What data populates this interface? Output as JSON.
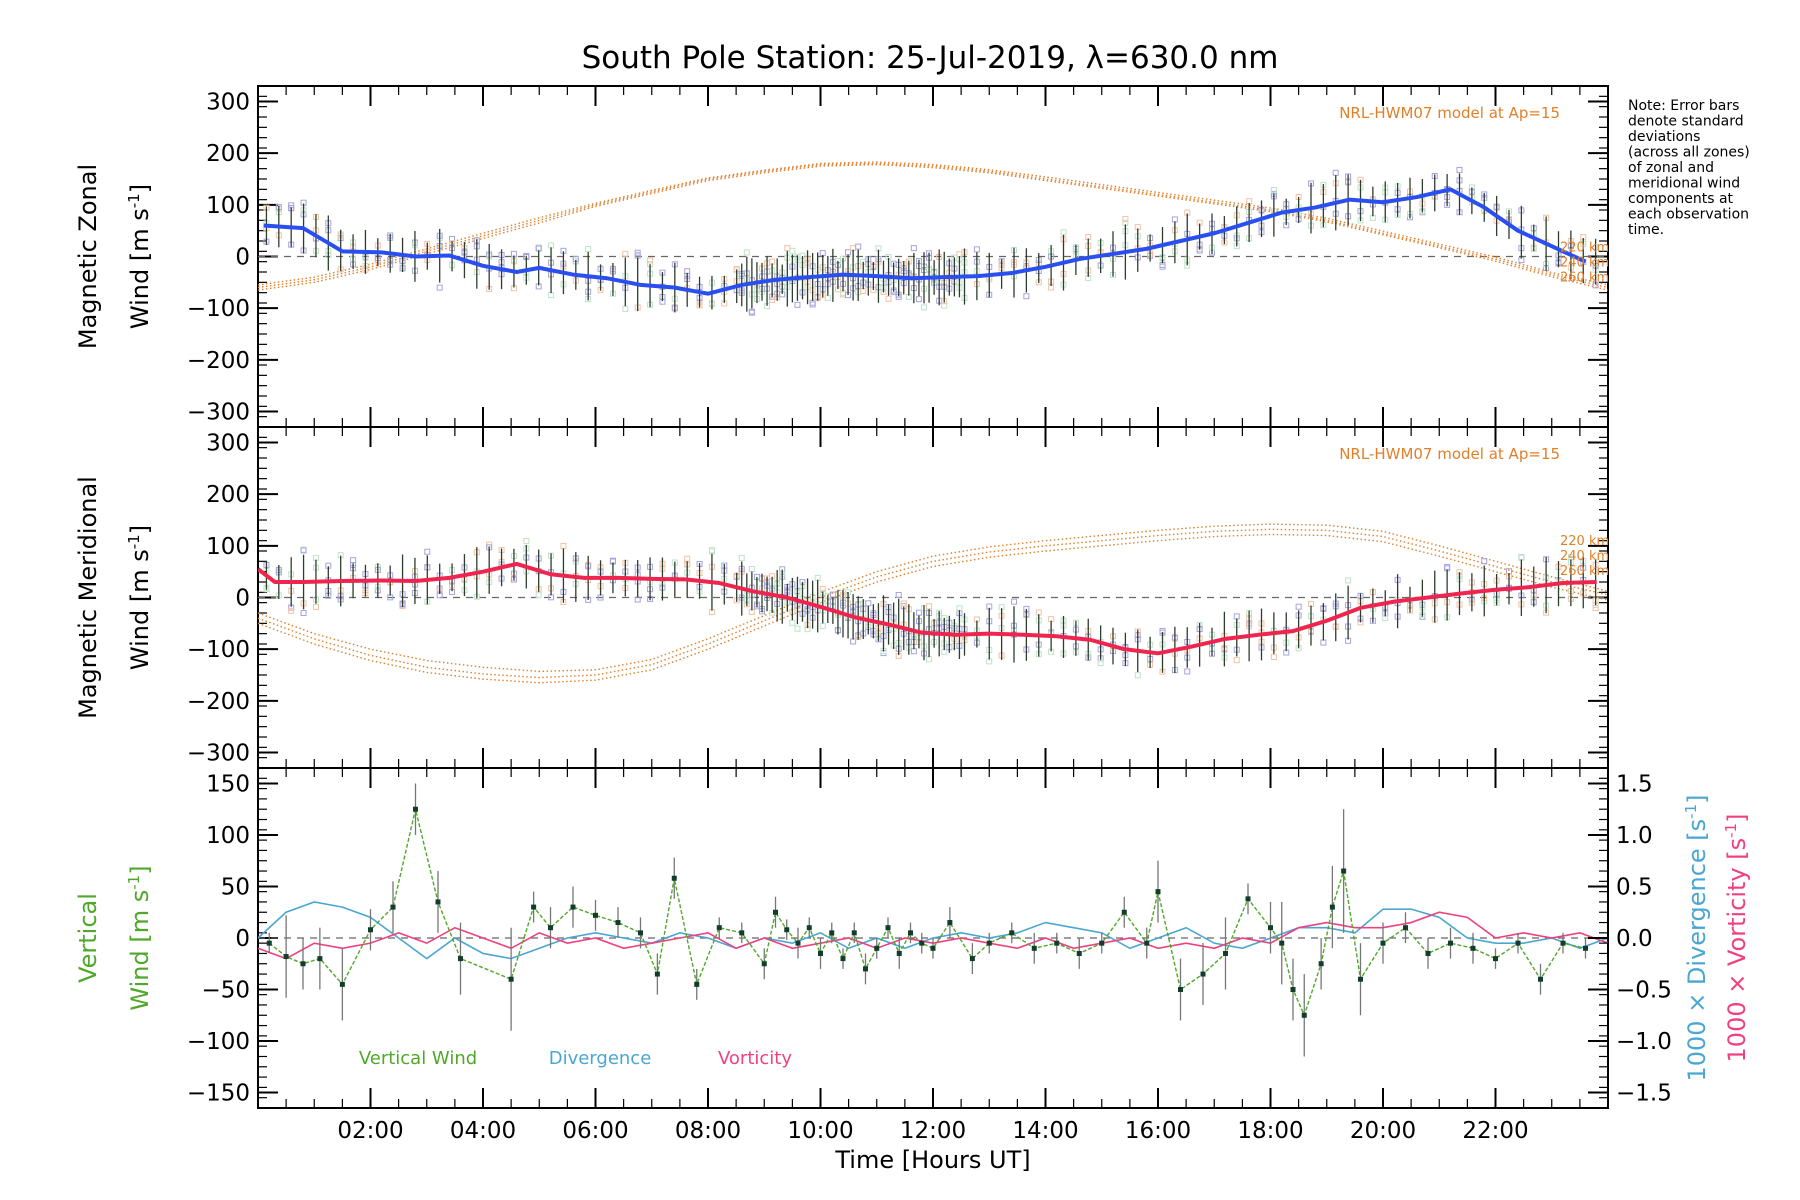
{
  "title": "South Pole Station: 25-Jul-2019, λ=630.0 nm",
  "note": [
    "Note: Error bars",
    "denote standard",
    "deviations",
    "(across all zones)",
    "of zonal and",
    "meridional wind",
    "components at",
    "each observation",
    "time."
  ],
  "colors": {
    "zonal": "#2a4ff0",
    "meridional": "#f0254f",
    "vertical": "#4fa82a",
    "divergence": "#4aa6d2",
    "vorticity": "#f0407f",
    "model": "#e0802a",
    "scatter": "#a7a3dd",
    "errorbar": "#2c3e2c"
  },
  "chart_data": [
    {
      "id": "zonal",
      "type": "line",
      "ylabel_line1": "Magnetic Zonal",
      "ylabel_line2": "Wind [m s",
      "ylabel_sup": "-1",
      "ylabel_close": "]",
      "ylim": [
        -330,
        330
      ],
      "yticks": [
        300,
        200,
        100,
        0,
        -100,
        -200,
        -300
      ],
      "yticklabels": [
        "300",
        "200",
        "100",
        "0",
        "−100",
        "−200",
        "−300"
      ],
      "model_label": "NRL-HWM07 model at Ap=15",
      "model_heights": [
        "220 km",
        "240 km",
        "260 km"
      ],
      "series": [
        {
          "name": "Zonal wind",
          "x": [
            0.1,
            0.8,
            1.5,
            2.2,
            2.8,
            3.4,
            4.0,
            4.6,
            5.0,
            5.6,
            6.2,
            6.8,
            7.4,
            8.0,
            8.6,
            9.2,
            9.8,
            10.4,
            11.0,
            11.6,
            12.2,
            12.8,
            13.4,
            14.0,
            14.6,
            15.2,
            15.8,
            16.4,
            17.0,
            17.6,
            18.2,
            18.8,
            19.4,
            20.0,
            20.6,
            21.2,
            21.8,
            22.4,
            23.0,
            23.6
          ],
          "y": [
            60,
            55,
            10,
            8,
            0,
            2,
            -18,
            -30,
            -22,
            -35,
            -42,
            -55,
            -60,
            -72,
            -55,
            -45,
            -40,
            -35,
            -38,
            -42,
            -40,
            -38,
            -32,
            -20,
            -5,
            5,
            15,
            30,
            45,
            65,
            85,
            95,
            110,
            105,
            115,
            130,
            95,
            50,
            20,
            -10
          ]
        }
      ],
      "model_curves": [
        {
          "name": "220 km",
          "x": [
            0,
            1,
            2,
            3,
            4,
            5,
            6,
            7,
            8,
            9,
            10,
            11,
            12,
            13,
            14,
            15,
            16,
            17,
            18,
            19,
            20,
            21,
            22,
            23,
            24
          ],
          "y": [
            -60,
            -45,
            -20,
            10,
            40,
            70,
            100,
            125,
            150,
            165,
            178,
            180,
            175,
            165,
            150,
            135,
            120,
            105,
            90,
            70,
            45,
            20,
            -5,
            -35,
            -60
          ]
        },
        {
          "name": "240 km",
          "x": [
            0,
            1,
            2,
            3,
            4,
            5,
            6,
            7,
            8,
            9,
            10,
            11,
            12,
            13,
            14,
            15,
            16,
            17,
            18,
            19,
            20,
            21,
            22,
            23,
            24
          ],
          "y": [
            -55,
            -40,
            -15,
            15,
            45,
            75,
            103,
            128,
            152,
            167,
            180,
            183,
            178,
            168,
            154,
            139,
            124,
            109,
            94,
            74,
            49,
            24,
            -1,
            -31,
            -55
          ]
        },
        {
          "name": "260 km",
          "x": [
            0,
            1,
            2,
            3,
            4,
            5,
            6,
            7,
            8,
            9,
            10,
            11,
            12,
            13,
            14,
            15,
            16,
            17,
            18,
            19,
            20,
            21,
            22,
            23,
            24
          ],
          "y": [
            -65,
            -50,
            -25,
            5,
            35,
            65,
            97,
            122,
            147,
            162,
            175,
            178,
            172,
            162,
            147,
            132,
            117,
            102,
            87,
            67,
            42,
            17,
            -9,
            -39,
            -65
          ]
        }
      ]
    },
    {
      "id": "meridional",
      "type": "line",
      "ylabel_line1": "Magnetic Meridional",
      "ylabel_line2": "Wind [m s",
      "ylabel_sup": "-1",
      "ylabel_close": "]",
      "ylim": [
        -330,
        330
      ],
      "yticks": [
        300,
        200,
        100,
        0,
        -100,
        -200,
        -300
      ],
      "yticklabels": [
        "300",
        "200",
        "100",
        "0",
        "−100",
        "−200",
        "−300"
      ],
      "model_label": "NRL-HWM07 model at Ap=15",
      "model_heights": [
        "220 km",
        "240 km",
        "260 km"
      ],
      "series": [
        {
          "name": "Meridional wind",
          "x": [
            0.0,
            0.3,
            0.8,
            1.5,
            2.2,
            2.8,
            3.4,
            4.0,
            4.6,
            5.2,
            5.8,
            6.4,
            7.0,
            7.6,
            8.2,
            8.8,
            9.4,
            10.0,
            10.6,
            11.2,
            11.8,
            12.4,
            13.0,
            13.6,
            14.2,
            14.8,
            15.4,
            16.0,
            16.6,
            17.2,
            17.8,
            18.4,
            19.0,
            19.6,
            20.2,
            20.8,
            21.4,
            22.0,
            22.6,
            23.2,
            23.8
          ],
          "y": [
            55,
            30,
            30,
            32,
            33,
            32,
            38,
            50,
            65,
            45,
            38,
            38,
            36,
            35,
            28,
            12,
            0,
            -18,
            -38,
            -52,
            -68,
            -72,
            -70,
            -72,
            -75,
            -82,
            -100,
            -108,
            -95,
            -80,
            -72,
            -65,
            -45,
            -20,
            -8,
            0,
            8,
            15,
            20,
            28,
            30
          ]
        }
      ],
      "model_curves": [
        {
          "name": "220 km",
          "x": [
            0,
            1,
            2,
            3,
            4,
            5,
            6,
            7,
            8,
            9,
            10,
            11,
            12,
            13,
            14,
            15,
            16,
            17,
            18,
            19,
            20,
            21,
            22,
            23,
            24
          ],
          "y": [
            -40,
            -80,
            -112,
            -135,
            -148,
            -155,
            -150,
            -130,
            -90,
            -45,
            0,
            40,
            70,
            88,
            100,
            110,
            120,
            128,
            132,
            130,
            118,
            90,
            60,
            30,
            5
          ]
        },
        {
          "name": "240 km",
          "x": [
            0,
            1,
            2,
            3,
            4,
            5,
            6,
            7,
            8,
            9,
            10,
            11,
            12,
            13,
            14,
            15,
            16,
            17,
            18,
            19,
            20,
            21,
            22,
            23,
            24
          ],
          "y": [
            -30,
            -70,
            -100,
            -122,
            -135,
            -143,
            -140,
            -120,
            -80,
            -35,
            10,
            50,
            80,
            98,
            110,
            120,
            130,
            138,
            142,
            140,
            128,
            100,
            70,
            40,
            12
          ]
        },
        {
          "name": "260 km",
          "x": [
            0,
            1,
            2,
            3,
            4,
            5,
            6,
            7,
            8,
            9,
            10,
            11,
            12,
            13,
            14,
            15,
            16,
            17,
            18,
            19,
            20,
            21,
            22,
            23,
            24
          ],
          "y": [
            -50,
            -90,
            -122,
            -145,
            -158,
            -165,
            -160,
            -140,
            -100,
            -55,
            -10,
            30,
            60,
            78,
            90,
            100,
            110,
            118,
            122,
            120,
            108,
            80,
            50,
            20,
            -5
          ]
        }
      ]
    },
    {
      "id": "vertical",
      "type": "line",
      "ylabel_line1": "Vertical",
      "ylabel_line2": "Wind [m s",
      "ylabel_sup": "-1",
      "ylabel_close": "]",
      "ylim": [
        -165,
        165
      ],
      "yticks": [
        150,
        100,
        50,
        0,
        -50,
        -100,
        -150
      ],
      "yticklabels": [
        "150",
        "100",
        "50",
        "0",
        "−50",
        "−100",
        "−150"
      ],
      "y2lim": [
        -1.65,
        1.65
      ],
      "y2ticks": [
        1.5,
        1.0,
        0.5,
        0.0,
        -0.5,
        -1.0,
        -1.5
      ],
      "y2ticklabels": [
        "1.5",
        "1.0",
        "0.5",
        "0.0",
        "−0.5",
        "−1.0",
        "−1.5"
      ],
      "y2label_div": "1000 × Divergence [s",
      "y2label_vor": "1000 × Vorticity [s",
      "legend": [
        "Vertical Wind",
        "Divergence",
        "Vorticity"
      ],
      "series": [
        {
          "name": "Vertical Wind",
          "x": [
            0.2,
            0.5,
            0.8,
            1.1,
            1.5,
            2.0,
            2.4,
            2.8,
            3.2,
            3.6,
            4.5,
            4.9,
            5.2,
            5.6,
            6.0,
            6.4,
            6.8,
            7.1,
            7.4,
            7.8,
            8.2,
            8.6,
            9.0,
            9.2,
            9.4,
            9.6,
            9.8,
            10.0,
            10.2,
            10.4,
            10.6,
            10.8,
            11.0,
            11.2,
            11.4,
            11.6,
            11.8,
            12.0,
            12.3,
            12.7,
            13.0,
            13.4,
            13.8,
            14.2,
            14.6,
            15.0,
            15.4,
            15.8,
            16.0,
            16.4,
            16.8,
            17.2,
            17.6,
            18.0,
            18.2,
            18.4,
            18.6,
            18.9,
            19.1,
            19.3,
            19.6,
            20.0,
            20.4,
            20.8,
            21.2,
            21.6,
            22.0,
            22.4,
            22.8,
            23.2,
            23.6
          ],
          "y": [
            -5,
            -18,
            -25,
            -20,
            -45,
            8,
            30,
            125,
            35,
            -20,
            -40,
            30,
            10,
            30,
            22,
            15,
            5,
            -35,
            58,
            -45,
            10,
            5,
            -25,
            25,
            8,
            -5,
            10,
            -15,
            5,
            -20,
            5,
            -30,
            -10,
            10,
            -15,
            5,
            -5,
            -10,
            15,
            -20,
            -5,
            5,
            -10,
            -5,
            -15,
            -5,
            25,
            -5,
            45,
            -50,
            -35,
            -15,
            38,
            10,
            -5,
            -50,
            -75,
            -25,
            30,
            65,
            -40,
            -5,
            10,
            -15,
            -5,
            -10,
            -20,
            -5,
            -40,
            -5,
            -10
          ],
          "err": [
            10,
            40,
            25,
            30,
            35,
            20,
            25,
            25,
            30,
            35,
            50,
            15,
            20,
            20,
            15,
            15,
            15,
            20,
            20,
            15,
            10,
            10,
            15,
            15,
            10,
            15,
            10,
            15,
            10,
            10,
            10,
            15,
            10,
            10,
            15,
            10,
            10,
            10,
            15,
            15,
            10,
            10,
            15,
            10,
            15,
            10,
            15,
            15,
            30,
            30,
            30,
            35,
            15,
            25,
            40,
            30,
            40,
            25,
            40,
            60,
            35,
            20,
            15,
            15,
            15,
            15,
            10,
            10,
            15,
            10,
            10
          ]
        },
        {
          "name": "Divergence",
          "x": [
            0,
            0.5,
            1.0,
            1.5,
            2.0,
            2.5,
            3.0,
            3.5,
            4.0,
            4.5,
            5.0,
            5.5,
            6.0,
            6.5,
            7.0,
            7.5,
            8.0,
            8.5,
            9.0,
            9.5,
            10.0,
            10.5,
            11.0,
            11.5,
            12.0,
            12.5,
            13.0,
            13.5,
            14.0,
            14.5,
            15.0,
            15.5,
            16.0,
            16.5,
            17.0,
            17.5,
            18.0,
            18.5,
            19.0,
            19.5,
            20.0,
            20.5,
            21.0,
            21.5,
            22.0,
            22.5,
            23.0,
            23.5,
            24.0
          ],
          "y": [
            0.0,
            0.25,
            0.35,
            0.3,
            0.2,
            0.0,
            -0.2,
            0.0,
            -0.15,
            -0.2,
            -0.1,
            0.0,
            0.05,
            0.0,
            -0.05,
            0.05,
            0.0,
            -0.1,
            0.0,
            -0.05,
            0.05,
            -0.1,
            0.0,
            -0.1,
            0.0,
            0.05,
            0.0,
            0.05,
            0.15,
            0.1,
            0.05,
            -0.1,
            0.0,
            0.1,
            -0.05,
            -0.1,
            0.0,
            0.1,
            0.1,
            0.05,
            0.28,
            0.28,
            0.2,
            0.0,
            -0.05,
            -0.05,
            0.0,
            -0.1,
            0.0
          ]
        },
        {
          "name": "Vorticity",
          "x": [
            0,
            0.5,
            1.0,
            1.5,
            2.0,
            2.5,
            3.0,
            3.5,
            4.0,
            4.5,
            5.0,
            5.5,
            6.0,
            6.5,
            7.0,
            7.5,
            8.0,
            8.5,
            9.0,
            9.5,
            10.0,
            10.5,
            11.0,
            11.5,
            12.0,
            12.5,
            13.0,
            13.5,
            14.0,
            14.5,
            15.0,
            15.5,
            16.0,
            16.5,
            17.0,
            17.5,
            18.0,
            18.5,
            19.0,
            19.5,
            20.0,
            20.5,
            21.0,
            21.5,
            22.0,
            22.5,
            23.0,
            23.5,
            24.0
          ],
          "y": [
            -0.1,
            -0.2,
            -0.05,
            -0.1,
            -0.05,
            0.05,
            -0.05,
            0.1,
            0.0,
            -0.1,
            0.05,
            -0.05,
            0.0,
            -0.1,
            -0.05,
            0.0,
            0.05,
            -0.1,
            0.0,
            -0.1,
            -0.05,
            0.0,
            -0.1,
            0.0,
            -0.05,
            0.0,
            -0.05,
            -0.1,
            0.0,
            -0.1,
            -0.05,
            0.0,
            -0.1,
            -0.05,
            -0.1,
            0.0,
            -0.05,
            0.1,
            0.15,
            0.1,
            0.1,
            0.15,
            0.25,
            0.2,
            0.0,
            0.05,
            0.0,
            0.05,
            -0.05
          ]
        }
      ]
    }
  ],
  "xaxis": {
    "xlim": [
      0,
      24
    ],
    "ticks": [
      2,
      4,
      6,
      8,
      10,
      12,
      14,
      16,
      18,
      20,
      22
    ],
    "ticklabels": [
      "02:00",
      "04:00",
      "06:00",
      "08:00",
      "10:00",
      "12:00",
      "14:00",
      "16:00",
      "18:00",
      "20:00",
      "22:00"
    ],
    "label": "Time [Hours UT]"
  }
}
